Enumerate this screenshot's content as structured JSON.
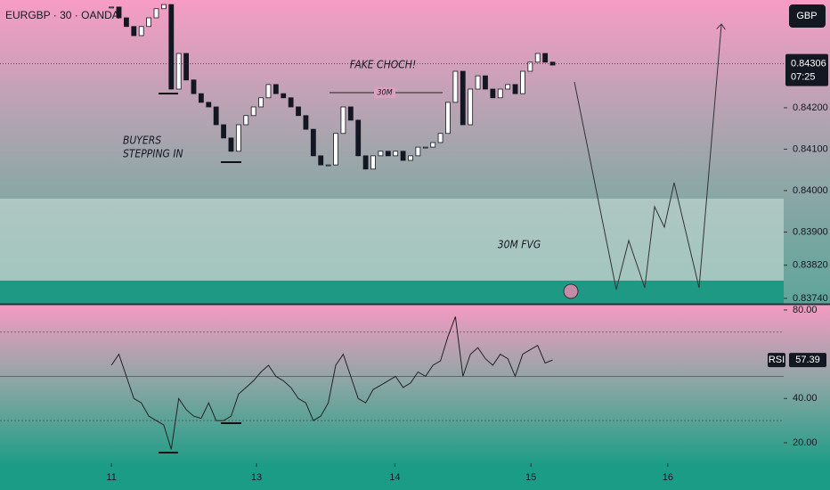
{
  "header": {
    "symbol": "EURGBP · 30 · OANDA",
    "currency": "GBP",
    "countdown": "07:25"
  },
  "annotations": {
    "choch": "FAKE CHOCH!",
    "range": "30M",
    "buyers": [
      "BUYERS",
      "STEPPING IN"
    ],
    "fvg": "30M FVG"
  },
  "chart_data": [
    {
      "type": "candlestick",
      "values": [
        0.84443,
        0.84417,
        0.84396,
        0.84374,
        0.84396,
        0.84417,
        0.84439,
        0.84449,
        0.84245,
        0.84331,
        0.84267,
        0.84234,
        0.84213,
        0.84202,
        0.84159,
        0.84127,
        0.84095,
        0.84159,
        0.84181,
        0.84202,
        0.84224,
        0.84256,
        0.84234,
        0.84224,
        0.84202,
        0.84181,
        0.84148,
        0.84084,
        0.84062,
        0.84062,
        0.84138,
        0.84202,
        0.8417,
        0.84084,
        0.84052,
        0.84084,
        0.84095,
        0.84084,
        0.84095,
        0.84073,
        0.84084,
        0.84105,
        0.84105,
        0.84116,
        0.84138,
        0.84213,
        0.84288,
        0.84159,
        0.84245,
        0.84277,
        0.84245,
        0.84224,
        0.84245,
        0.84256,
        0.84234,
        0.84288,
        0.8431,
        0.84331,
        0.8431,
        0.84303
      ],
      "last_price": {
        "value": 0.84306,
        "label": "0.84306"
      },
      "xlim": [
        -14.9,
        89.9
      ],
      "ylim": [
        0.83729,
        0.8446
      ],
      "yticks": [
        {
          "value": 0.842,
          "label": "0.84200"
        },
        {
          "value": 0.841,
          "label": "0.84100"
        },
        {
          "value": 0.84,
          "label": "0.84000"
        },
        {
          "value": 0.839,
          "label": "0.83900"
        },
        {
          "value": 0.8382,
          "label": "0.83820"
        },
        {
          "value": 0.8374,
          "label": "0.83740"
        }
      ]
    },
    {
      "type": "line",
      "title": "RSI",
      "last_label": "57.39",
      "color": "#222222",
      "values": [
        55,
        60,
        50,
        40,
        38,
        32,
        30,
        28,
        17,
        40,
        35,
        32,
        31,
        38,
        30,
        30,
        32,
        42,
        45,
        48,
        52,
        55,
        50,
        48,
        45,
        40,
        38,
        30,
        32,
        38,
        55,
        60,
        50,
        40,
        38,
        44,
        46,
        48,
        50,
        45,
        47,
        52,
        50,
        55,
        57,
        68,
        77,
        50,
        60,
        63,
        58,
        55,
        60,
        58,
        50,
        60,
        62,
        64,
        56,
        57.39
      ],
      "levels": [
        70,
        50,
        30
      ],
      "xlim": [
        -14.9,
        89.9
      ],
      "ylim": [
        10.7,
        82
      ],
      "yticks": [
        {
          "value": 80,
          "label": "80.00"
        },
        {
          "value": 40,
          "label": "40.00"
        },
        {
          "value": 20,
          "label": "20.00"
        }
      ],
      "xticks": [
        {
          "value": 0,
          "label": "11"
        },
        {
          "value": 19.4,
          "label": "13"
        },
        {
          "value": 37.9,
          "label": "14"
        },
        {
          "value": 56.1,
          "label": "15"
        },
        {
          "value": 74.4,
          "label": "16"
        }
      ]
    }
  ]
}
